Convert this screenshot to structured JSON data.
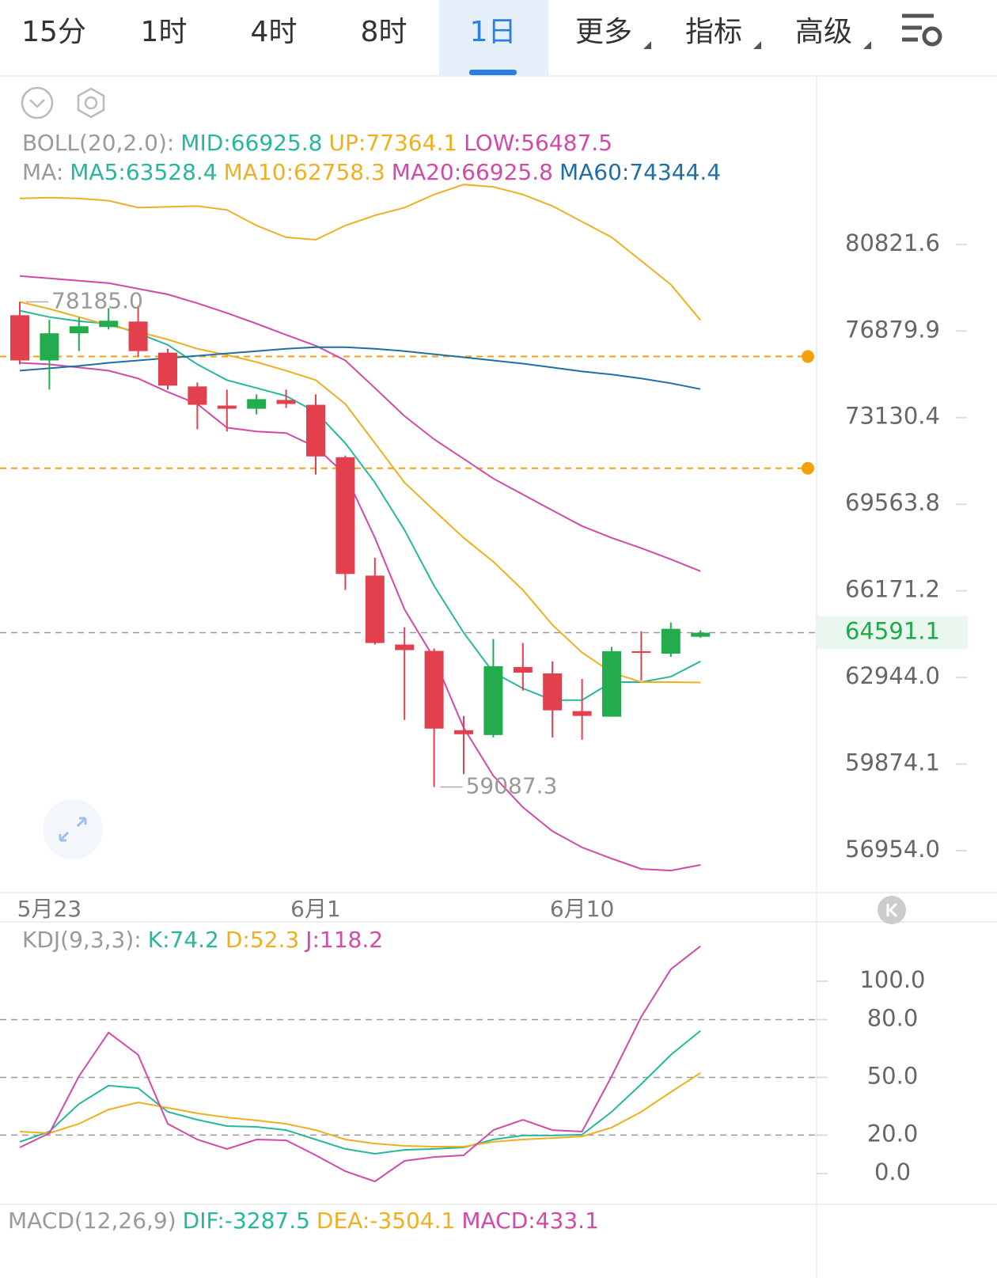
{
  "tabs": [
    "15分",
    "1时",
    "4时",
    "8时",
    "1日",
    "更多",
    "指标",
    "高级"
  ],
  "selected_tab": 4,
  "dropdown_tabs": [
    5,
    6,
    7
  ],
  "chart_data": [
    {
      "type": "candlestick",
      "log_scale": true,
      "legend_rows": [
        [
          {
            "text": "BOLL(20,2.0):",
            "color": "#9a9a9a"
          },
          {
            "text": "MID:66925.8",
            "color": "#26b89c"
          },
          {
            "text": "UP:77364.1",
            "color": "#eeb021"
          },
          {
            "text": "LOW:56487.5",
            "color": "#d24aa8"
          }
        ],
        [
          {
            "text": "MA:",
            "color": "#9a9a9a"
          },
          {
            "text": "MA5:63528.4",
            "color": "#26b89c"
          },
          {
            "text": "MA10:62758.3",
            "color": "#eeb021"
          },
          {
            "text": "MA20:66925.8",
            "color": "#d24aa8"
          },
          {
            "text": "MA60:74344.4",
            "color": "#1f6fa6"
          }
        ]
      ],
      "categories": [
        null,
        "5月23",
        null,
        null,
        null,
        null,
        null,
        null,
        null,
        null,
        "6月1",
        null,
        null,
        null,
        null,
        null,
        null,
        null,
        null,
        "6月10",
        null,
        null,
        null,
        null
      ],
      "open": [
        77584,
        75584,
        76778,
        77056,
        77302,
        75925,
        74459,
        73640,
        73505,
        73880,
        73674,
        71478,
        66755,
        64150,
        63916,
        61055,
        60886,
        63325,
        63091,
        61732,
        61534,
        63903,
        63815,
        64440
      ],
      "high": [
        78185,
        77373,
        77478,
        77901,
        78006,
        76096,
        74630,
        74323,
        74118,
        74323,
        74118,
        71542,
        67449,
        64794,
        64003,
        61562,
        64355,
        64208,
        63530,
        62888,
        64062,
        64648,
        64970,
        64680
      ],
      "low": [
        75414,
        74323,
        75996,
        76950,
        75755,
        74323,
        72644,
        72547,
        73266,
        73539,
        70765,
        66204,
        64150,
        61421,
        59087.3,
        59526,
        60801,
        62465,
        60801,
        60717,
        61534,
        62831,
        63700,
        64400
      ],
      "close": [
        75584,
        76778,
        77091,
        77338,
        75993,
        74493,
        73674,
        73505,
        73914,
        73710,
        71510,
        66818,
        64208,
        63945,
        61111,
        60914,
        63354,
        63120,
        61760,
        61562,
        63903,
        63844,
        64735,
        64591.1
      ],
      "up_color": "#22ac4e",
      "down_color": "#e3404e",
      "lines": [
        {
          "color": "#eeb021",
          "values": [
            82999,
            83035,
            82999,
            82888,
            82556,
            82593,
            82630,
            82445,
            81707,
            81154,
            81043,
            81707,
            82187,
            82556,
            83183,
            83663,
            83552,
            83183,
            82630,
            81892,
            81154,
            80060,
            78969,
            77364.1
          ]
        },
        {
          "color": "#d24aa8",
          "values": [
            79362,
            79252,
            79143,
            79034,
            78778,
            78523,
            78121,
            77683,
            77208,
            76709,
            76232,
            75584,
            74391,
            73197,
            72223,
            71413,
            70603,
            69955,
            69315,
            68693,
            68227,
            67823,
            67387,
            66925.8
          ]
        },
        {
          "color": "#d24aa8",
          "values": [
            75482,
            75414,
            75277,
            75141,
            74800,
            74221,
            73709,
            72709,
            72547,
            72482,
            71899,
            70765,
            68227,
            65468,
            63640,
            61139,
            59472,
            58400,
            57596,
            57060,
            56694,
            56356,
            56304,
            56487.5
          ]
        },
        {
          "color": "#26b89c",
          "values": [
            77789,
            77499,
            77318,
            77208,
            76778,
            76266,
            75414,
            74732,
            74391,
            74050,
            73368,
            72061,
            70441,
            68538,
            66360,
            64589,
            63124,
            62549,
            62126,
            62126,
            62775,
            62775,
            62973,
            63528.4
          ]
        },
        {
          "color": "#eeb021",
          "values": [
            78185,
            77865,
            77500,
            77136,
            76846,
            76505,
            76096,
            75823,
            75516,
            75141,
            74732,
            73709,
            72061,
            70441,
            69315,
            68227,
            67294,
            66202,
            64882,
            63857,
            63124,
            62775,
            62775,
            62758.3
          ]
        },
        {
          "color": "#1f6fa6",
          "values": [
            75141,
            75243,
            75346,
            75482,
            75584,
            75687,
            75789,
            75891,
            75993,
            76096,
            76164,
            76164,
            76096,
            75993,
            75857,
            75721,
            75584,
            75448,
            75277,
            75107,
            74971,
            74800,
            74595,
            74344.4
          ]
        }
      ],
      "annotations": [
        {
          "value": 78185,
          "label": "78185.0"
        },
        {
          "value": 59087.3,
          "label": "59087.3"
        }
      ],
      "price_lines": [
        75755,
        71024
      ],
      "price_line_color": "#f2a20c",
      "current_price": 64591.1,
      "ylim": [
        55667,
        88913
      ],
      "yticks": [
        80821.6,
        76879.9,
        73130.4,
        69563.8,
        66171.2,
        {
          "value": 62944,
          "label": "62944.0"
        },
        59874.1,
        {
          "value": 56954,
          "label": "56954.0"
        }
      ]
    },
    {
      "type": "line",
      "legend_rows": [
        [
          {
            "text": "KDJ(9,3,3):",
            "color": "#9a9a9a"
          },
          {
            "text": "K:74.2",
            "color": "#26b89c"
          },
          {
            "text": "D:52.3",
            "color": "#eeb021"
          },
          {
            "text": "J:118.2",
            "color": "#d24aa8"
          }
        ]
      ],
      "series": [
        {
          "color": "#26b89c",
          "values": [
            16.5,
            21.8,
            36.2,
            45.7,
            44.4,
            32.1,
            28.0,
            24.7,
            24.3,
            22.6,
            17.7,
            12.8,
            10.3,
            12.3,
            12.8,
            13.6,
            17.7,
            19.8,
            19.8,
            20.2,
            32.1,
            46.5,
            61.7,
            74.2
          ]
        },
        {
          "color": "#eeb021",
          "values": [
            21.8,
            21.0,
            25.9,
            33.3,
            37.0,
            34.2,
            31.3,
            29.2,
            27.6,
            25.9,
            22.6,
            17.7,
            15.6,
            14.4,
            14.0,
            14.0,
            16.5,
            17.7,
            18.5,
            19.3,
            23.9,
            32.1,
            42.4,
            52.3
          ]
        },
        {
          "color": "#d24aa8",
          "values": [
            13.6,
            21.0,
            50.6,
            73.3,
            61.7,
            25.9,
            17.7,
            12.8,
            17.7,
            17.3,
            9.5,
            1.2,
            -4.1,
            6.6,
            8.6,
            9.5,
            22.6,
            28.0,
            22.6,
            21.8,
            50.6,
            81.5,
            106.2,
            118.2
          ]
        }
      ],
      "ylim": [
        -15.2,
        126.7
      ],
      "yticks": [
        {
          "value": 100,
          "label": "100.0"
        },
        {
          "value": 80,
          "label": "80.0"
        },
        {
          "value": 50,
          "label": "50.0"
        },
        {
          "value": 20,
          "label": "20.0"
        },
        {
          "value": 0,
          "label": "0.0"
        }
      ],
      "dashed_levels": [
        80,
        50,
        20
      ]
    }
  ],
  "macd_legend": [
    {
      "text": "MACD(12,26,9)",
      "color": "#9a9a9a"
    },
    {
      "text": "DIF:-3287.5",
      "color": "#26b89c"
    },
    {
      "text": "DEA:-3504.1",
      "color": "#eeb021"
    },
    {
      "text": "MACD:433.1",
      "color": "#d24aa8"
    }
  ]
}
